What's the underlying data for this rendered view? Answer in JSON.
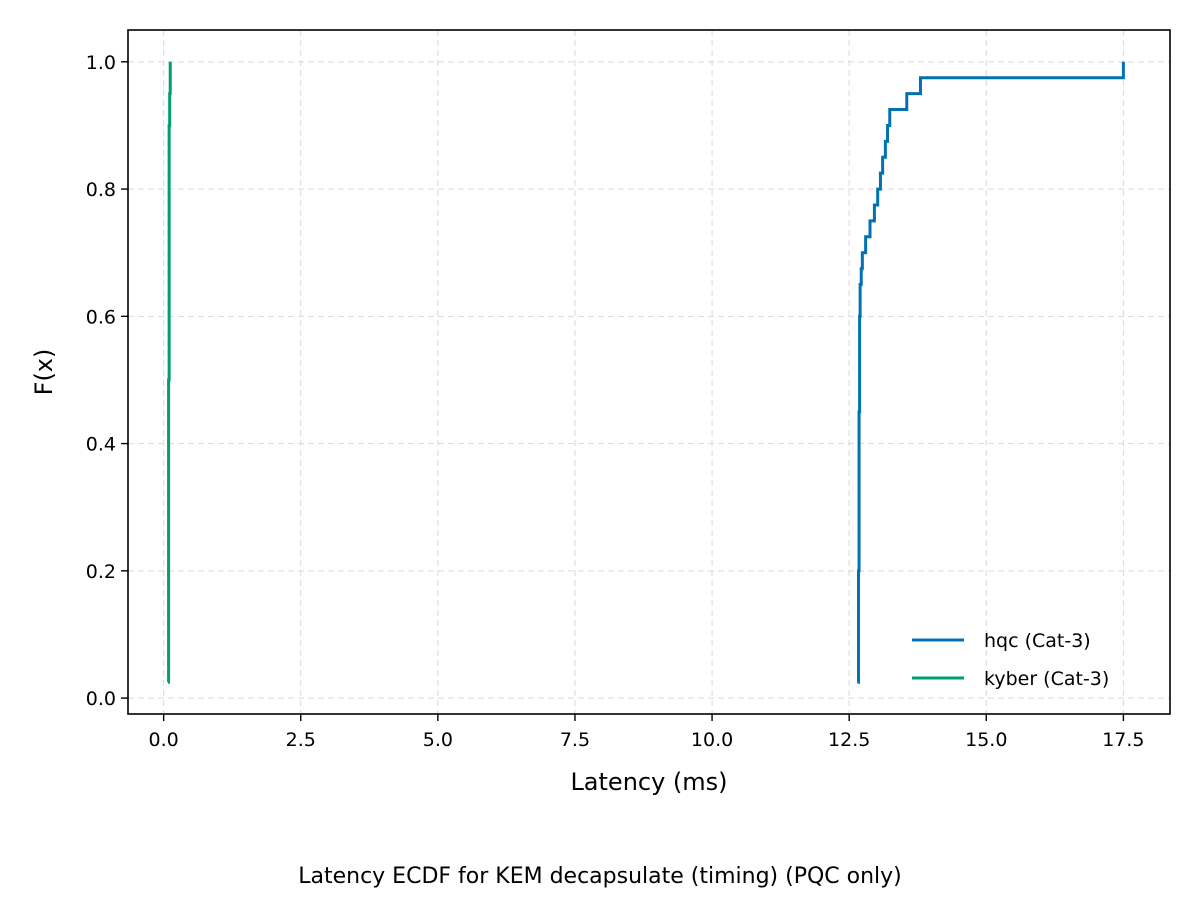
{
  "caption": "Latency ECDF for KEM decapsulate (timing) (PQC only)",
  "chart_data": {
    "type": "line",
    "step": true,
    "xlabel": "Latency (ms)",
    "ylabel": "F(x)",
    "xlim": [
      -0.65,
      18.35
    ],
    "ylim": [
      -0.025,
      1.05
    ],
    "xticks": [
      0.0,
      2.5,
      5.0,
      7.5,
      10.0,
      12.5,
      15.0,
      17.5
    ],
    "xtick_labels": [
      "0.0",
      "2.5",
      "5.0",
      "7.5",
      "10.0",
      "12.5",
      "15.0",
      "17.5"
    ],
    "yticks": [
      0.0,
      0.2,
      0.4,
      0.6,
      0.8,
      1.0
    ],
    "ytick_labels": [
      "0.0",
      "0.2",
      "0.4",
      "0.6",
      "0.8",
      "1.0"
    ],
    "grid": true,
    "legend": "lower-right",
    "series": [
      {
        "name": "hqc (Cat-3)",
        "color": "#0072b2",
        "x": [
          12.65,
          12.67,
          12.68,
          12.69,
          12.7,
          12.72,
          12.74,
          12.77,
          12.8,
          12.88,
          12.96,
          13.02,
          13.07,
          13.11,
          13.16,
          13.2,
          13.24,
          13.28,
          13.55,
          13.8,
          17.5
        ],
        "y": [
          0.025,
          0.2,
          0.45,
          0.6,
          0.65,
          0.675,
          0.7,
          0.7,
          0.725,
          0.75,
          0.775,
          0.8,
          0.825,
          0.85,
          0.875,
          0.9,
          0.925,
          0.925,
          0.95,
          0.975,
          1.0
        ]
      },
      {
        "name": "kyber (Cat-3)",
        "color": "#009e73",
        "x": [
          0.08,
          0.09,
          0.1,
          0.11,
          0.12
        ],
        "y": [
          0.025,
          0.5,
          0.9,
          0.95,
          1.0
        ]
      }
    ]
  }
}
